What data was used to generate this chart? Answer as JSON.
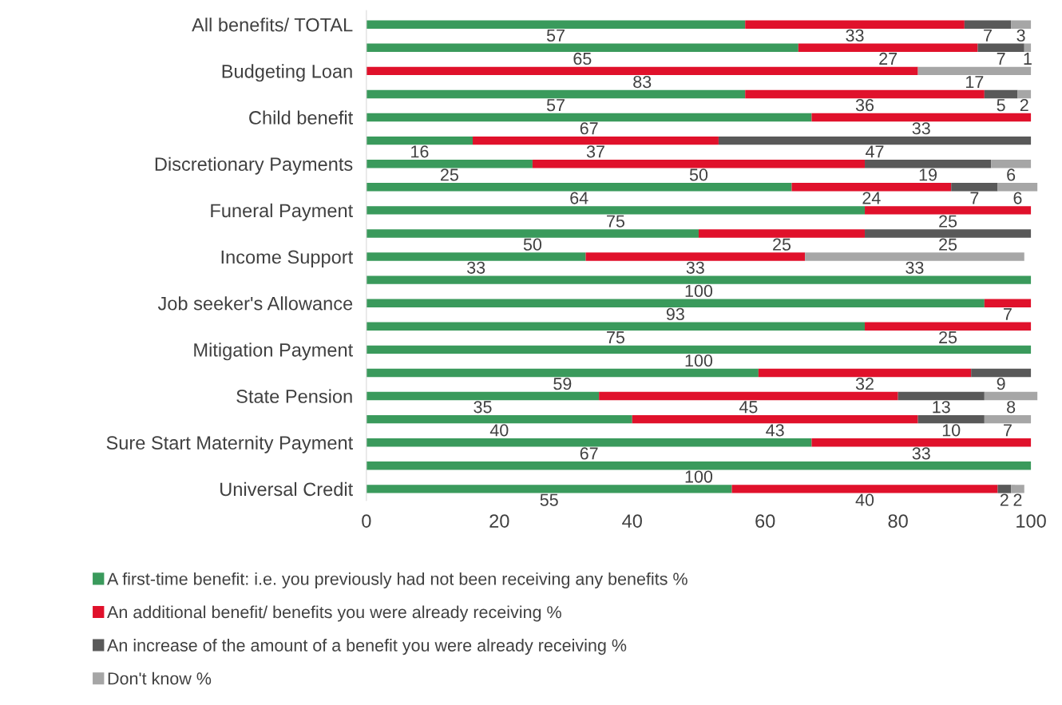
{
  "chart_data": {
    "type": "bar",
    "orientation": "horizontal",
    "stacked": true,
    "data_labels": true,
    "legend": "bottom",
    "grid": false,
    "categories": [
      "All benefits/ TOTAL",
      null,
      "Budgeting Loan",
      null,
      "Child benefit",
      null,
      "Discretionary Payments",
      null,
      "Funeral Payment",
      null,
      "Income Support",
      null,
      "Job seeker's Allowance",
      null,
      "Mitigation Payment",
      null,
      "State Pension",
      null,
      "Sure Start Maternity Payment",
      null,
      "Universal Credit"
    ],
    "xlim": [
      0,
      101
    ],
    "xticks": [
      0,
      20,
      40,
      60,
      80,
      100
    ],
    "series": [
      {
        "name": "A first-time benefit: i.e. you previously had not been receiving any benefits %",
        "color": "#3a9a5c",
        "values": [
          57,
          65,
          null,
          57,
          67,
          16,
          25,
          64,
          75,
          50,
          33,
          100,
          93,
          75,
          100,
          59,
          35,
          40,
          67,
          100,
          55
        ]
      },
      {
        "name": "An additional benefit/ benefits you were already receiving %",
        "color": "#e0112b",
        "values": [
          33,
          27,
          83,
          36,
          33,
          37,
          50,
          24,
          25,
          25,
          33,
          null,
          7,
          25,
          null,
          32,
          45,
          43,
          33,
          null,
          40
        ]
      },
      {
        "name": "An increase of the amount of a benefit you were already receiving %",
        "color": "#595959",
        "values": [
          7,
          7,
          null,
          5,
          null,
          47,
          19,
          7,
          null,
          25,
          null,
          null,
          null,
          null,
          null,
          9,
          13,
          10,
          null,
          null,
          2
        ]
      },
      {
        "name": "Don't know %",
        "color": "#a6a6a6",
        "values": [
          3,
          1,
          17,
          2,
          null,
          null,
          6,
          6,
          null,
          null,
          33,
          null,
          null,
          null,
          null,
          null,
          8,
          7,
          null,
          null,
          2
        ]
      }
    ]
  }
}
